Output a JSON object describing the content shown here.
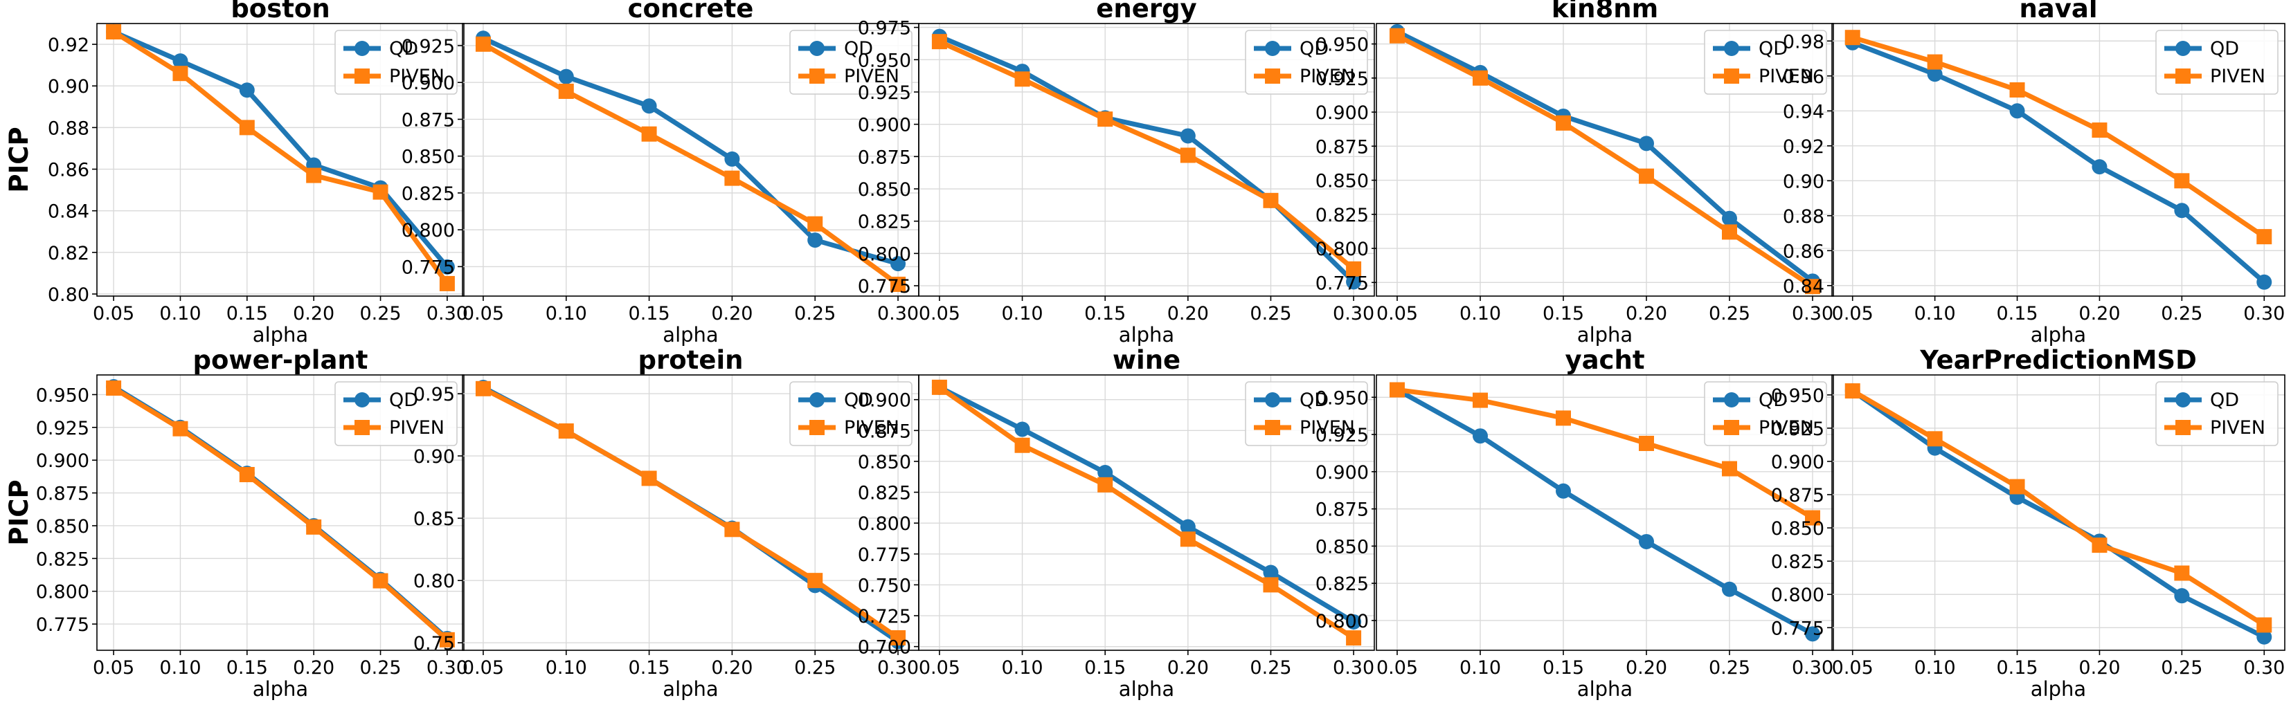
{
  "colors": {
    "QD": "#1f77b4",
    "PIVEN": "#ff7f0e"
  },
  "chart_data": [
    {
      "type": "line",
      "title": "boston",
      "xlabel": "alpha",
      "ylabel": "PICP",
      "x": [
        0.05,
        0.1,
        0.15,
        0.2,
        0.25,
        0.3
      ],
      "xticks": [
        "0.05",
        "0.10",
        "0.15",
        "0.20",
        "0.25",
        "0.30"
      ],
      "ylim": [
        0.799,
        0.93
      ],
      "yticks": [
        "0.80",
        "0.82",
        "0.84",
        "0.86",
        "0.88",
        "0.90",
        "0.92"
      ],
      "legend": "top-right",
      "series": [
        {
          "name": "QD",
          "values": [
            0.926,
            0.912,
            0.898,
            0.862,
            0.851,
            0.813
          ]
        },
        {
          "name": "PIVEN",
          "values": [
            0.926,
            0.906,
            0.88,
            0.857,
            0.849,
            0.805
          ]
        }
      ]
    },
    {
      "type": "line",
      "title": "concrete",
      "xlabel": "alpha",
      "ylabel": "",
      "x": [
        0.05,
        0.1,
        0.15,
        0.2,
        0.25,
        0.3
      ],
      "xticks": [
        "0.05",
        "0.10",
        "0.15",
        "0.20",
        "0.25",
        "0.30"
      ],
      "ylim": [
        0.755,
        0.94
      ],
      "yticks": [
        "0.775",
        "0.800",
        "0.825",
        "0.850",
        "0.875",
        "0.900",
        "0.925"
      ],
      "legend": "top-right",
      "series": [
        {
          "name": "QD",
          "values": [
            0.93,
            0.904,
            0.884,
            0.848,
            0.793,
            0.777
          ]
        },
        {
          "name": "PIVEN",
          "values": [
            0.926,
            0.894,
            0.865,
            0.835,
            0.804,
            0.763
          ]
        }
      ]
    },
    {
      "type": "line",
      "title": "energy",
      "xlabel": "alpha",
      "ylabel": "",
      "x": [
        0.05,
        0.1,
        0.15,
        0.2,
        0.25,
        0.3
      ],
      "xticks": [
        "0.05",
        "0.10",
        "0.15",
        "0.20",
        "0.25",
        "0.30"
      ],
      "ylim": [
        0.767,
        0.978
      ],
      "yticks": [
        "0.775",
        "0.800",
        "0.825",
        "0.850",
        "0.875",
        "0.900",
        "0.925",
        "0.950",
        "0.975"
      ],
      "legend": "top-right",
      "series": [
        {
          "name": "QD",
          "values": [
            0.968,
            0.941,
            0.905,
            0.891,
            0.841,
            0.778
          ]
        },
        {
          "name": "PIVEN",
          "values": [
            0.964,
            0.935,
            0.904,
            0.876,
            0.841,
            0.788
          ]
        }
      ]
    },
    {
      "type": "line",
      "title": "kin8nm",
      "xlabel": "alpha",
      "ylabel": "",
      "x": [
        0.05,
        0.1,
        0.15,
        0.2,
        0.25,
        0.3
      ],
      "xticks": [
        "0.05",
        "0.10",
        "0.15",
        "0.20",
        "0.25",
        "0.30"
      ],
      "ylim": [
        0.765,
        0.965
      ],
      "yticks": [
        "0.775",
        "0.800",
        "0.825",
        "0.850",
        "0.875",
        "0.900",
        "0.925",
        "0.950"
      ],
      "legend": "top-right",
      "series": [
        {
          "name": "QD",
          "values": [
            0.959,
            0.929,
            0.897,
            0.877,
            0.822,
            0.776
          ]
        },
        {
          "name": "PIVEN",
          "values": [
            0.956,
            0.925,
            0.892,
            0.853,
            0.812,
            0.772
          ]
        }
      ]
    },
    {
      "type": "line",
      "title": "naval",
      "xlabel": "alpha",
      "ylabel": "",
      "x": [
        0.05,
        0.1,
        0.15,
        0.2,
        0.25,
        0.3
      ],
      "xticks": [
        "0.05",
        "0.10",
        "0.15",
        "0.20",
        "0.25",
        "0.30"
      ],
      "ylim": [
        0.834,
        0.99
      ],
      "yticks": [
        "0.84",
        "0.86",
        "0.88",
        "0.90",
        "0.92",
        "0.94",
        "0.96",
        "0.98"
      ],
      "legend": "top-right",
      "series": [
        {
          "name": "QD",
          "values": [
            0.979,
            0.961,
            0.94,
            0.908,
            0.883,
            0.842
          ]
        },
        {
          "name": "PIVEN",
          "values": [
            0.982,
            0.968,
            0.952,
            0.929,
            0.9,
            0.868
          ]
        }
      ]
    },
    {
      "type": "line",
      "title": "power-plant",
      "xlabel": "alpha",
      "ylabel": "PICP",
      "x": [
        0.05,
        0.1,
        0.15,
        0.2,
        0.25,
        0.3
      ],
      "xticks": [
        "0.05",
        "0.10",
        "0.15",
        "0.20",
        "0.25",
        "0.30"
      ],
      "ylim": [
        0.755,
        0.965
      ],
      "yticks": [
        "0.775",
        "0.800",
        "0.825",
        "0.850",
        "0.875",
        "0.900",
        "0.925",
        "0.950"
      ],
      "legend": "top-right",
      "series": [
        {
          "name": "QD",
          "values": [
            0.956,
            0.925,
            0.89,
            0.85,
            0.809,
            0.764
          ]
        },
        {
          "name": "PIVEN",
          "values": [
            0.955,
            0.924,
            0.889,
            0.849,
            0.808,
            0.763
          ]
        }
      ]
    },
    {
      "type": "line",
      "title": "protein",
      "xlabel": "alpha",
      "ylabel": "",
      "x": [
        0.05,
        0.1,
        0.15,
        0.2,
        0.25,
        0.3
      ],
      "xticks": [
        "0.05",
        "0.10",
        "0.15",
        "0.20",
        "0.25",
        "0.30"
      ],
      "ylim": [
        0.744,
        0.965
      ],
      "yticks": [
        "0.75",
        "0.80",
        "0.85",
        "0.90",
        "0.95"
      ],
      "legend": "top-right",
      "series": [
        {
          "name": "QD",
          "values": [
            0.955,
            0.92,
            0.882,
            0.842,
            0.796,
            0.751
          ]
        },
        {
          "name": "PIVEN",
          "values": [
            0.954,
            0.92,
            0.882,
            0.841,
            0.8,
            0.754
          ]
        }
      ]
    },
    {
      "type": "line",
      "title": "wine",
      "xlabel": "alpha",
      "ylabel": "",
      "x": [
        0.05,
        0.1,
        0.15,
        0.2,
        0.25,
        0.3
      ],
      "xticks": [
        "0.05",
        "0.10",
        "0.15",
        "0.20",
        "0.25",
        "0.30"
      ],
      "ylim": [
        0.697,
        0.92
      ],
      "yticks": [
        "0.700",
        "0.725",
        "0.750",
        "0.775",
        "0.800",
        "0.825",
        "0.850",
        "0.875",
        "0.900"
      ],
      "legend": "top-right",
      "series": [
        {
          "name": "QD",
          "values": [
            0.91,
            0.876,
            0.841,
            0.797,
            0.76,
            0.72
          ]
        },
        {
          "name": "PIVEN",
          "values": [
            0.91,
            0.863,
            0.831,
            0.787,
            0.75,
            0.707
          ]
        }
      ]
    },
    {
      "type": "line",
      "title": "yacht",
      "xlabel": "alpha",
      "ylabel": "",
      "x": [
        0.05,
        0.1,
        0.15,
        0.2,
        0.25,
        0.3
      ],
      "xticks": [
        "0.05",
        "0.10",
        "0.15",
        "0.20",
        "0.25",
        "0.30"
      ],
      "ylim": [
        0.78,
        0.965
      ],
      "yticks": [
        "0.800",
        "0.825",
        "0.850",
        "0.875",
        "0.900",
        "0.925",
        "0.950"
      ],
      "legend": "top-right",
      "series": [
        {
          "name": "QD",
          "values": [
            0.955,
            0.924,
            0.887,
            0.853,
            0.821,
            0.791
          ]
        },
        {
          "name": "PIVEN",
          "values": [
            0.955,
            0.948,
            0.936,
            0.919,
            0.902,
            0.869
          ]
        }
      ]
    },
    {
      "type": "line",
      "title": "YearPredictionMSD",
      "xlabel": "alpha",
      "ylabel": "",
      "x": [
        0.05,
        0.1,
        0.15,
        0.2,
        0.25,
        0.3
      ],
      "xticks": [
        "0.05",
        "0.10",
        "0.15",
        "0.20",
        "0.25",
        "0.30"
      ],
      "ylim": [
        0.758,
        0.965
      ],
      "yticks": [
        "0.775",
        "0.800",
        "0.825",
        "0.850",
        "0.875",
        "0.900",
        "0.925",
        "0.950"
      ],
      "legend": "top-right",
      "series": [
        {
          "name": "QD",
          "values": [
            0.953,
            0.91,
            0.873,
            0.84,
            0.799,
            0.768
          ]
        },
        {
          "name": "PIVEN",
          "values": [
            0.953,
            0.917,
            0.881,
            0.837,
            0.816,
            0.777
          ]
        }
      ]
    }
  ]
}
